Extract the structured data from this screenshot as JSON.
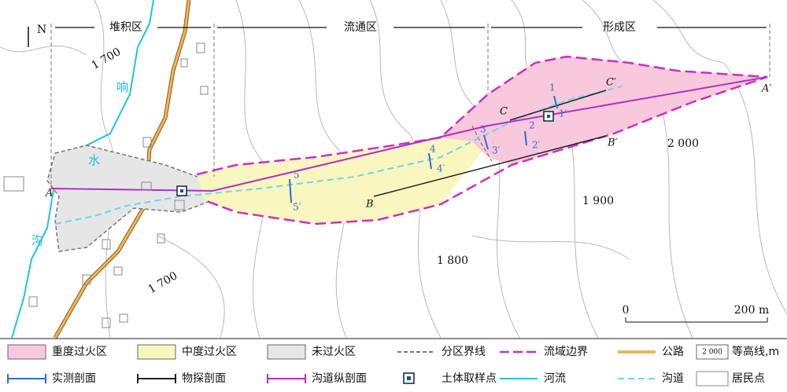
{
  "north": "N",
  "zones": [
    "堆积区",
    "流通区",
    "形成区"
  ],
  "contour_labels": [
    "1 700",
    "1 700",
    "1 800",
    "1 900",
    "2 000"
  ],
  "river_labels": [
    "响",
    "水",
    "沟"
  ],
  "profile_points": [
    "A",
    "A′",
    "B",
    "B′",
    "C",
    "C′"
  ],
  "sections": [
    "1",
    "1′",
    "2",
    "2′",
    "3",
    "3′",
    "4",
    "4′",
    "5",
    "5′"
  ],
  "scale": {
    "start": "0",
    "end": "200 m"
  },
  "legend": [
    "重度过火区",
    "中度过火区",
    "未过火区",
    "分区界线",
    "流域边界",
    "公路",
    "等高线,m",
    "实测剖面",
    "物探剖面",
    "沟道纵剖面",
    "土体取样点",
    "河流",
    "沟道",
    "居民点"
  ],
  "legend_contour_sample": "2 000"
}
